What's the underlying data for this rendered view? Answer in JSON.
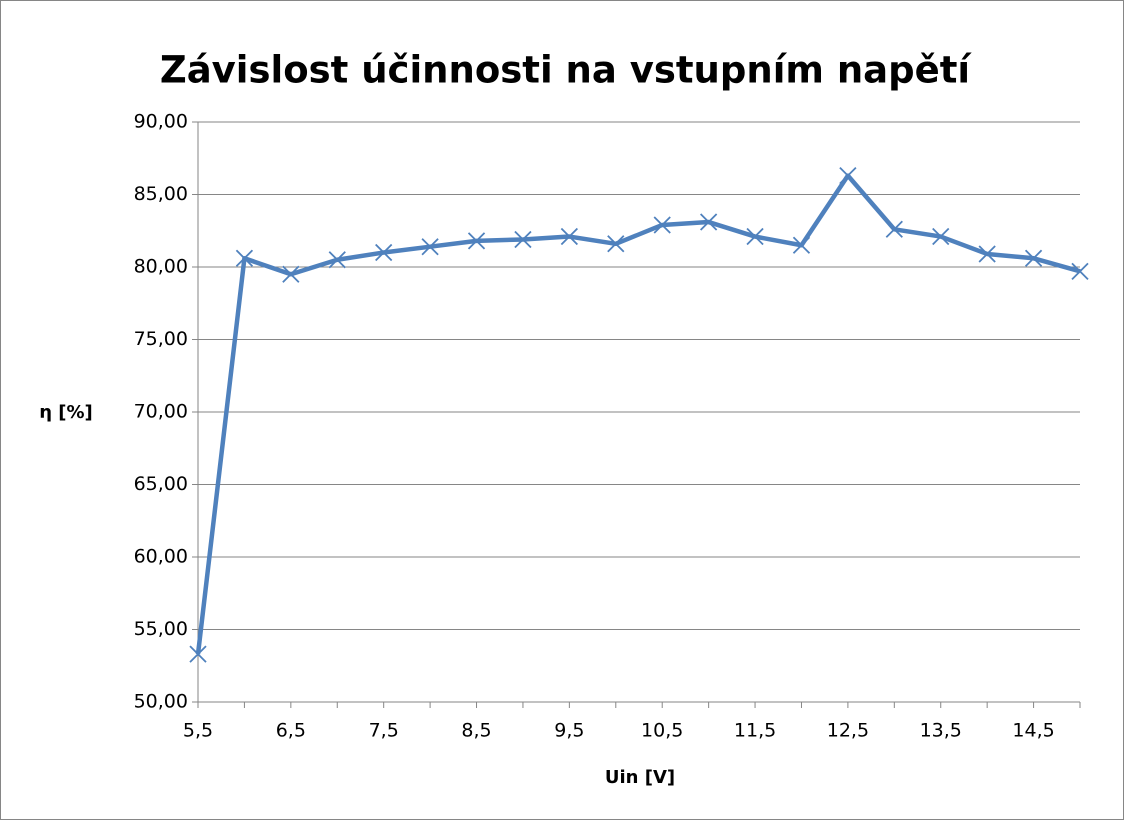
{
  "chart_data": {
    "type": "line",
    "title": "Závislost účinnosti na vstupním napětí",
    "x_label": "Uin [V]",
    "y_label": "η [%]",
    "categories": [
      "5,5",
      null,
      "6,5",
      null,
      "7,5",
      null,
      "8,5",
      null,
      "9,5",
      null,
      "10,5",
      null,
      "11,5",
      null,
      "12,5",
      null,
      "13,5",
      null,
      "14,5",
      null
    ],
    "series": [
      {
        "name": "η",
        "color": "#4f81bd",
        "values": [
          53.3,
          80.6,
          79.5,
          80.5,
          81.0,
          81.4,
          81.8,
          81.9,
          82.1,
          81.6,
          82.9,
          83.1,
          82.1,
          81.5,
          86.3,
          82.6,
          82.1,
          80.9,
          80.6,
          79.7
        ]
      }
    ],
    "ylim": [
      50,
      90
    ],
    "yticks": [
      {
        "value": 50,
        "label": "50,00"
      },
      {
        "value": 55,
        "label": "55,00"
      },
      {
        "value": 60,
        "label": "60,00"
      },
      {
        "value": 65,
        "label": "65,00"
      },
      {
        "value": 70,
        "label": "70,00"
      },
      {
        "value": 75,
        "label": "75,00"
      },
      {
        "value": 80,
        "label": "80,00"
      },
      {
        "value": 85,
        "label": "85,00"
      },
      {
        "value": 90,
        "label": "90,00"
      }
    ],
    "grid": true
  }
}
